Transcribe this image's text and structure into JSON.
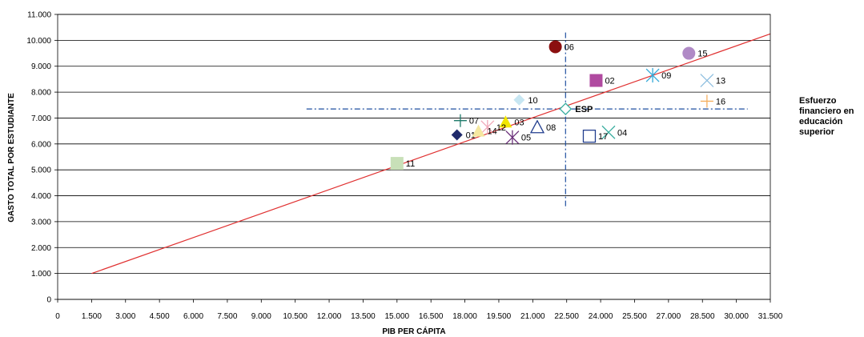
{
  "chart_data": {
    "type": "scatter",
    "xlabel": "PIB PER CÁPITA",
    "ylabel": "GASTO TOTAL POR ESTUDIANTE",
    "xlim": [
      0,
      31500
    ],
    "ylim": [
      0,
      11000
    ],
    "x_ticks": [
      "0",
      "1.500",
      "3.000",
      "4.500",
      "6.000",
      "7.500",
      "9.000",
      "10.500",
      "12.000",
      "13.500",
      "15.000",
      "16.500",
      "18.000",
      "19.500",
      "21.000",
      "22.500",
      "24.000",
      "25.500",
      "27.000",
      "28.500",
      "30.000",
      "31.500"
    ],
    "y_ticks": [
      "0",
      "1.000",
      "2.000",
      "3.000",
      "4.000",
      "5.000",
      "6.000",
      "7.000",
      "8.000",
      "9.000",
      "10.000",
      "11.000"
    ],
    "grid": "horizontal",
    "legend": {
      "text": "Esfuerzo financiero en educación superior",
      "placement": "right"
    },
    "points": [
      {
        "label": "01",
        "x": 17650,
        "y": 6350,
        "marker": "diamond",
        "color": "#1f2a6b"
      },
      {
        "label": "02",
        "x": 23800,
        "y": 8450,
        "marker": "square",
        "color": "#b04aa0"
      },
      {
        "label": "03",
        "x": 19800,
        "y": 6850,
        "marker": "triangle",
        "color": "#f2e600"
      },
      {
        "label": "04",
        "x": 24350,
        "y": 6450,
        "marker": "x",
        "color": "#3aaea0"
      },
      {
        "label": "05",
        "x": 20100,
        "y": 6250,
        "marker": "asterisk",
        "color": "#6b2f7a"
      },
      {
        "label": "06",
        "x": 22000,
        "y": 9750,
        "marker": "circle",
        "color": "#8b0f0f"
      },
      {
        "label": "07",
        "x": 17800,
        "y": 6900,
        "marker": "plus",
        "color": "#1e7a6a"
      },
      {
        "label": "08",
        "x": 21200,
        "y": 6650,
        "marker": "triangle-open",
        "color": "#233f8f"
      },
      {
        "label": "09",
        "x": 26300,
        "y": 8650,
        "marker": "asterisk",
        "color": "#32a8d8"
      },
      {
        "label": "10",
        "x": 20400,
        "y": 7700,
        "marker": "diamond",
        "color": "#c7e6f2"
      },
      {
        "label": "11",
        "x": 15000,
        "y": 5250,
        "marker": "square",
        "color": "#c8e0b8"
      },
      {
        "label": "12",
        "x": 19000,
        "y": 6650,
        "marker": "asterisk",
        "color": "#f0a8b8"
      },
      {
        "label": "13",
        "x": 28700,
        "y": 8450,
        "marker": "x",
        "color": "#8fbfe0"
      },
      {
        "label": "14",
        "x": 18600,
        "y": 6500,
        "marker": "triangle",
        "color": "#f5e8a0"
      },
      {
        "label": "15",
        "x": 27900,
        "y": 9500,
        "marker": "circle",
        "color": "#b08ac6"
      },
      {
        "label": "16",
        "x": 28700,
        "y": 7650,
        "marker": "plus",
        "color": "#f5b060"
      },
      {
        "label": "17",
        "x": 23500,
        "y": 6300,
        "marker": "square-open",
        "color": "#233f8f"
      }
    ],
    "reference_point": {
      "label": "ESP",
      "x": 22450,
      "y": 7350,
      "marker": "diamond-open",
      "color": "#3aaea0"
    },
    "reference_lines": {
      "vertical_x": 22450,
      "vertical_y_range": [
        3500,
        10300
      ],
      "horizontal_y": 7350,
      "horizontal_x_range": [
        11000,
        30500
      ],
      "color": "#1f4fa0"
    },
    "trend_line": {
      "x": [
        1500,
        31500
      ],
      "y": [
        1000,
        10250
      ],
      "color": "#e03030"
    }
  }
}
